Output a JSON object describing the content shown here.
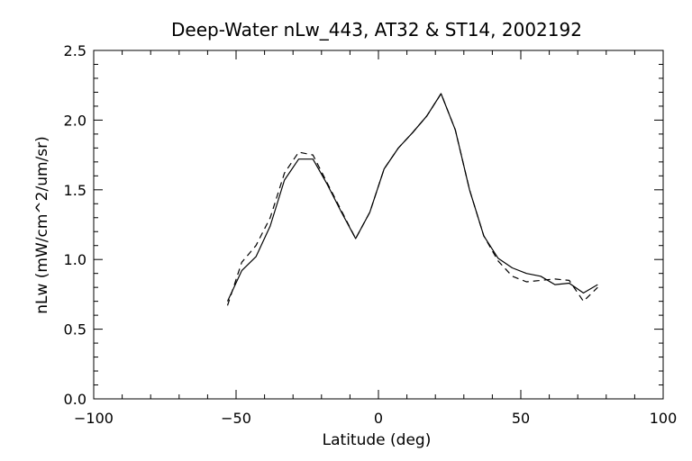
{
  "chart_data": {
    "type": "line",
    "title": "Deep-Water nLw_443, AT32 & ST14, 2002192",
    "xlabel": "Latitude (deg)",
    "ylabel": "nLw (mW/cm^2/um/sr)",
    "xlim": [
      -100,
      100
    ],
    "ylim": [
      0.0,
      2.5
    ],
    "x_ticks": [
      -100,
      -50,
      0,
      50,
      100
    ],
    "x_tick_labels": [
      "−100",
      "−50",
      "0",
      "50",
      "100"
    ],
    "y_ticks": [
      0.0,
      0.5,
      1.0,
      1.5,
      2.0,
      2.5
    ],
    "y_tick_labels": [
      "0.0",
      "0.5",
      "1.0",
      "1.5",
      "2.0",
      "2.5"
    ],
    "grid": false,
    "series": [
      {
        "style": "solid",
        "x": [
          -53,
          -48,
          -43,
          -38,
          -33,
          -28,
          -23,
          -18,
          -13,
          -8,
          -3,
          2,
          7,
          12,
          17,
          22,
          27,
          32,
          37,
          42,
          47,
          52,
          57,
          62,
          67,
          72,
          77
        ],
        "y": [
          0.7,
          0.92,
          1.02,
          1.24,
          1.57,
          1.72,
          1.72,
          1.54,
          1.34,
          1.15,
          1.34,
          1.65,
          1.8,
          1.91,
          2.03,
          2.19,
          1.93,
          1.5,
          1.17,
          1.01,
          0.94,
          0.9,
          0.88,
          0.82,
          0.83,
          0.76,
          0.82
        ]
      },
      {
        "style": "dashed",
        "x": [
          -53,
          -48,
          -43,
          -38,
          -33,
          -28,
          -23,
          -18,
          -13,
          -8,
          -3,
          2,
          7,
          12,
          17,
          22,
          27,
          32,
          37,
          42,
          47,
          52,
          57,
          62,
          67,
          72,
          77
        ],
        "y": [
          0.67,
          0.98,
          1.1,
          1.3,
          1.62,
          1.77,
          1.75,
          1.55,
          1.35,
          1.15,
          1.34,
          1.65,
          1.8,
          1.91,
          2.03,
          2.19,
          1.93,
          1.5,
          1.17,
          0.99,
          0.88,
          0.84,
          0.85,
          0.86,
          0.85,
          0.7,
          0.8
        ]
      }
    ]
  }
}
